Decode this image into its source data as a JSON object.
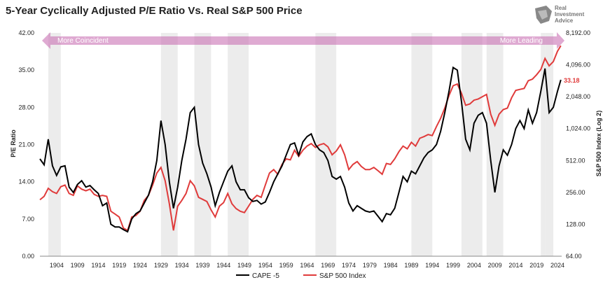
{
  "chart_data": {
    "type": "line",
    "title": "5-Year Cyclically Adjusted P/E Ratio Vs. Real S&P 500 Price",
    "ylabel_left": "P/E Ratio",
    "ylabel_right": "S&P 500 Index (Log 2)",
    "ylim_left": [
      0,
      42
    ],
    "ylim_right": [
      64,
      8192
    ],
    "right_scale": "log2",
    "xlim": [
      1900,
      2025
    ],
    "x_ticks": [
      1904,
      1909,
      1914,
      1919,
      1924,
      1929,
      1934,
      1939,
      1944,
      1949,
      1954,
      1959,
      1964,
      1969,
      1974,
      1979,
      1984,
      1989,
      1994,
      1999,
      2004,
      2009,
      2014,
      2019,
      2024
    ],
    "y_ticks_left": [
      "0.00",
      "7.00",
      "14.00",
      "21.00",
      "28.00",
      "35.00",
      "42.00"
    ],
    "y_ticks_right": [
      "64.00",
      "128.00",
      "256.00",
      "512.00",
      "1,024.00",
      "2,048.00",
      "4,096.00",
      "8,192.00"
    ],
    "band_left_label": "More Coincident",
    "band_right_label": "More Leading",
    "last_value_label": "33.18",
    "legend_position": "bottom",
    "grid": false,
    "recession_shading": [
      [
        1902,
        1905
      ],
      [
        1929,
        1933
      ],
      [
        1937,
        1941
      ],
      [
        1945,
        1950
      ],
      [
        1966,
        1971
      ],
      [
        1989,
        1994
      ],
      [
        2001,
        2006
      ],
      [
        2007,
        2011
      ],
      [
        2020,
        2021
      ],
      [
        2021,
        2023
      ]
    ],
    "series": [
      {
        "name": "CAPE -5",
        "color": "#000000",
        "axis": "left",
        "points": [
          [
            1900,
            18.3
          ],
          [
            1901,
            17.2
          ],
          [
            1902,
            22
          ],
          [
            1903,
            17
          ],
          [
            1904,
            15.2
          ],
          [
            1905,
            16.8
          ],
          [
            1906,
            17
          ],
          [
            1907,
            13
          ],
          [
            1908,
            12
          ],
          [
            1909,
            13.5
          ],
          [
            1910,
            14.2
          ],
          [
            1911,
            13
          ],
          [
            1912,
            13.3
          ],
          [
            1913,
            12.5
          ],
          [
            1914,
            11.8
          ],
          [
            1915,
            9.5
          ],
          [
            1916,
            10
          ],
          [
            1917,
            6
          ],
          [
            1918,
            5.5
          ],
          [
            1919,
            5.5
          ],
          [
            1920,
            5
          ],
          [
            1921,
            4.6
          ],
          [
            1922,
            7
          ],
          [
            1923,
            8
          ],
          [
            1924,
            8.5
          ],
          [
            1925,
            10
          ],
          [
            1926,
            11.5
          ],
          [
            1927,
            14
          ],
          [
            1928,
            18
          ],
          [
            1929,
            25.5
          ],
          [
            1930,
            21
          ],
          [
            1931,
            14
          ],
          [
            1932,
            9
          ],
          [
            1933,
            13
          ],
          [
            1934,
            18
          ],
          [
            1935,
            22
          ],
          [
            1936,
            27
          ],
          [
            1937,
            28
          ],
          [
            1938,
            21
          ],
          [
            1939,
            17.5
          ],
          [
            1940,
            15.5
          ],
          [
            1941,
            13
          ],
          [
            1942,
            9.5
          ],
          [
            1943,
            12
          ],
          [
            1944,
            14
          ],
          [
            1945,
            16
          ],
          [
            1946,
            17
          ],
          [
            1947,
            14
          ],
          [
            1948,
            12.5
          ],
          [
            1949,
            12.5
          ],
          [
            1950,
            11
          ],
          [
            1951,
            10.3
          ],
          [
            1952,
            10.5
          ],
          [
            1953,
            9.8
          ],
          [
            1954,
            10.2
          ],
          [
            1955,
            12
          ],
          [
            1956,
            14
          ],
          [
            1957,
            15.5
          ],
          [
            1958,
            17
          ],
          [
            1959,
            19
          ],
          [
            1960,
            21
          ],
          [
            1961,
            21.3
          ],
          [
            1962,
            19
          ],
          [
            1963,
            21.5
          ],
          [
            1964,
            22.5
          ],
          [
            1965,
            23
          ],
          [
            1966,
            21
          ],
          [
            1967,
            20
          ],
          [
            1968,
            19.5
          ],
          [
            1969,
            18
          ],
          [
            1970,
            15
          ],
          [
            1971,
            14.5
          ],
          [
            1972,
            15
          ],
          [
            1973,
            13
          ],
          [
            1974,
            10
          ],
          [
            1975,
            8.5
          ],
          [
            1976,
            9.5
          ],
          [
            1977,
            9
          ],
          [
            1978,
            8.5
          ],
          [
            1979,
            8.3
          ],
          [
            1980,
            8.5
          ],
          [
            1981,
            7.5
          ],
          [
            1982,
            6.5
          ],
          [
            1983,
            8
          ],
          [
            1984,
            7.8
          ],
          [
            1985,
            9
          ],
          [
            1986,
            12
          ],
          [
            1987,
            15
          ],
          [
            1988,
            14
          ],
          [
            1989,
            16
          ],
          [
            1990,
            15.5
          ],
          [
            1991,
            17
          ],
          [
            1992,
            18.5
          ],
          [
            1993,
            19.5
          ],
          [
            1994,
            20
          ],
          [
            1995,
            21
          ],
          [
            1996,
            23.5
          ],
          [
            1997,
            27
          ],
          [
            1998,
            31
          ],
          [
            1999,
            35.5
          ],
          [
            2000,
            35
          ],
          [
            2001,
            29
          ],
          [
            2002,
            22
          ],
          [
            2003,
            20
          ],
          [
            2004,
            25
          ],
          [
            2005,
            26.5
          ],
          [
            2006,
            27
          ],
          [
            2007,
            25
          ],
          [
            2008,
            18
          ],
          [
            2009,
            12
          ],
          [
            2010,
            17
          ],
          [
            2011,
            20
          ],
          [
            2012,
            19
          ],
          [
            2013,
            21
          ],
          [
            2014,
            24
          ],
          [
            2015,
            25.5
          ],
          [
            2016,
            24
          ],
          [
            2017,
            27.5
          ],
          [
            2018,
            25
          ],
          [
            2019,
            27
          ],
          [
            2020,
            31
          ],
          [
            2021,
            35.3
          ],
          [
            2022,
            27
          ],
          [
            2023,
            28
          ],
          [
            2024,
            31
          ],
          [
            2024.8,
            33.18
          ]
        ]
      },
      {
        "name": "S&P 500 Index",
        "color": "#e03b3b",
        "axis": "right",
        "points": [
          [
            1900,
            218
          ],
          [
            1901,
            235
          ],
          [
            1902,
            280
          ],
          [
            1903,
            260
          ],
          [
            1904,
            250
          ],
          [
            1905,
            290
          ],
          [
            1906,
            300
          ],
          [
            1907,
            250
          ],
          [
            1908,
            240
          ],
          [
            1909,
            295
          ],
          [
            1910,
            275
          ],
          [
            1911,
            265
          ],
          [
            1912,
            275
          ],
          [
            1913,
            245
          ],
          [
            1914,
            235
          ],
          [
            1915,
            240
          ],
          [
            1916,
            235
          ],
          [
            1917,
            170
          ],
          [
            1918,
            160
          ],
          [
            1919,
            150
          ],
          [
            1920,
            118
          ],
          [
            1921,
            112
          ],
          [
            1922,
            150
          ],
          [
            1923,
            155
          ],
          [
            1924,
            170
          ],
          [
            1925,
            215
          ],
          [
            1926,
            240
          ],
          [
            1927,
            300
          ],
          [
            1928,
            390
          ],
          [
            1929,
            440
          ],
          [
            1930,
            330
          ],
          [
            1931,
            200
          ],
          [
            1932,
            112
          ],
          [
            1933,
            190
          ],
          [
            1934,
            215
          ],
          [
            1935,
            250
          ],
          [
            1936,
            330
          ],
          [
            1937,
            295
          ],
          [
            1938,
            230
          ],
          [
            1939,
            220
          ],
          [
            1940,
            210
          ],
          [
            1941,
            175
          ],
          [
            1942,
            150
          ],
          [
            1943,
            190
          ],
          [
            1944,
            205
          ],
          [
            1945,
            250
          ],
          [
            1946,
            200
          ],
          [
            1947,
            180
          ],
          [
            1948,
            170
          ],
          [
            1949,
            165
          ],
          [
            1950,
            190
          ],
          [
            1951,
            220
          ],
          [
            1952,
            240
          ],
          [
            1953,
            230
          ],
          [
            1954,
            300
          ],
          [
            1955,
            390
          ],
          [
            1956,
            420
          ],
          [
            1957,
            380
          ],
          [
            1958,
            470
          ],
          [
            1959,
            530
          ],
          [
            1960,
            520
          ],
          [
            1961,
            640
          ],
          [
            1962,
            560
          ],
          [
            1963,
            640
          ],
          [
            1964,
            700
          ],
          [
            1965,
            740
          ],
          [
            1966,
            680
          ],
          [
            1967,
            720
          ],
          [
            1968,
            740
          ],
          [
            1969,
            690
          ],
          [
            1970,
            580
          ],
          [
            1971,
            630
          ],
          [
            1972,
            720
          ],
          [
            1973,
            580
          ],
          [
            1974,
            420
          ],
          [
            1975,
            470
          ],
          [
            1976,
            500
          ],
          [
            1977,
            450
          ],
          [
            1978,
            420
          ],
          [
            1979,
            420
          ],
          [
            1980,
            440
          ],
          [
            1981,
            410
          ],
          [
            1982,
            380
          ],
          [
            1983,
            480
          ],
          [
            1984,
            470
          ],
          [
            1985,
            530
          ],
          [
            1986,
            620
          ],
          [
            1987,
            700
          ],
          [
            1988,
            660
          ],
          [
            1989,
            760
          ],
          [
            1990,
            700
          ],
          [
            1991,
            830
          ],
          [
            1992,
            860
          ],
          [
            1993,
            900
          ],
          [
            1994,
            880
          ],
          [
            1995,
            1070
          ],
          [
            1996,
            1280
          ],
          [
            1997,
            1600
          ],
          [
            1998,
            2100
          ],
          [
            1999,
            2600
          ],
          [
            2000,
            2700
          ],
          [
            2001,
            2200
          ],
          [
            2002,
            1700
          ],
          [
            2003,
            1750
          ],
          [
            2004,
            1900
          ],
          [
            2005,
            1950
          ],
          [
            2006,
            2050
          ],
          [
            2007,
            2150
          ],
          [
            2008,
            1400
          ],
          [
            2009,
            1100
          ],
          [
            2010,
            1400
          ],
          [
            2011,
            1550
          ],
          [
            2012,
            1600
          ],
          [
            2013,
            2000
          ],
          [
            2014,
            2350
          ],
          [
            2015,
            2400
          ],
          [
            2016,
            2450
          ],
          [
            2017,
            2900
          ],
          [
            2018,
            3000
          ],
          [
            2019,
            3300
          ],
          [
            2020,
            3700
          ],
          [
            2021,
            4700
          ],
          [
            2022,
            4000
          ],
          [
            2023,
            4400
          ],
          [
            2024,
            5500
          ],
          [
            2024.8,
            6200
          ]
        ]
      }
    ]
  },
  "logo": {
    "line1": "Real",
    "line2": "Investment",
    "line3": "Advice"
  }
}
